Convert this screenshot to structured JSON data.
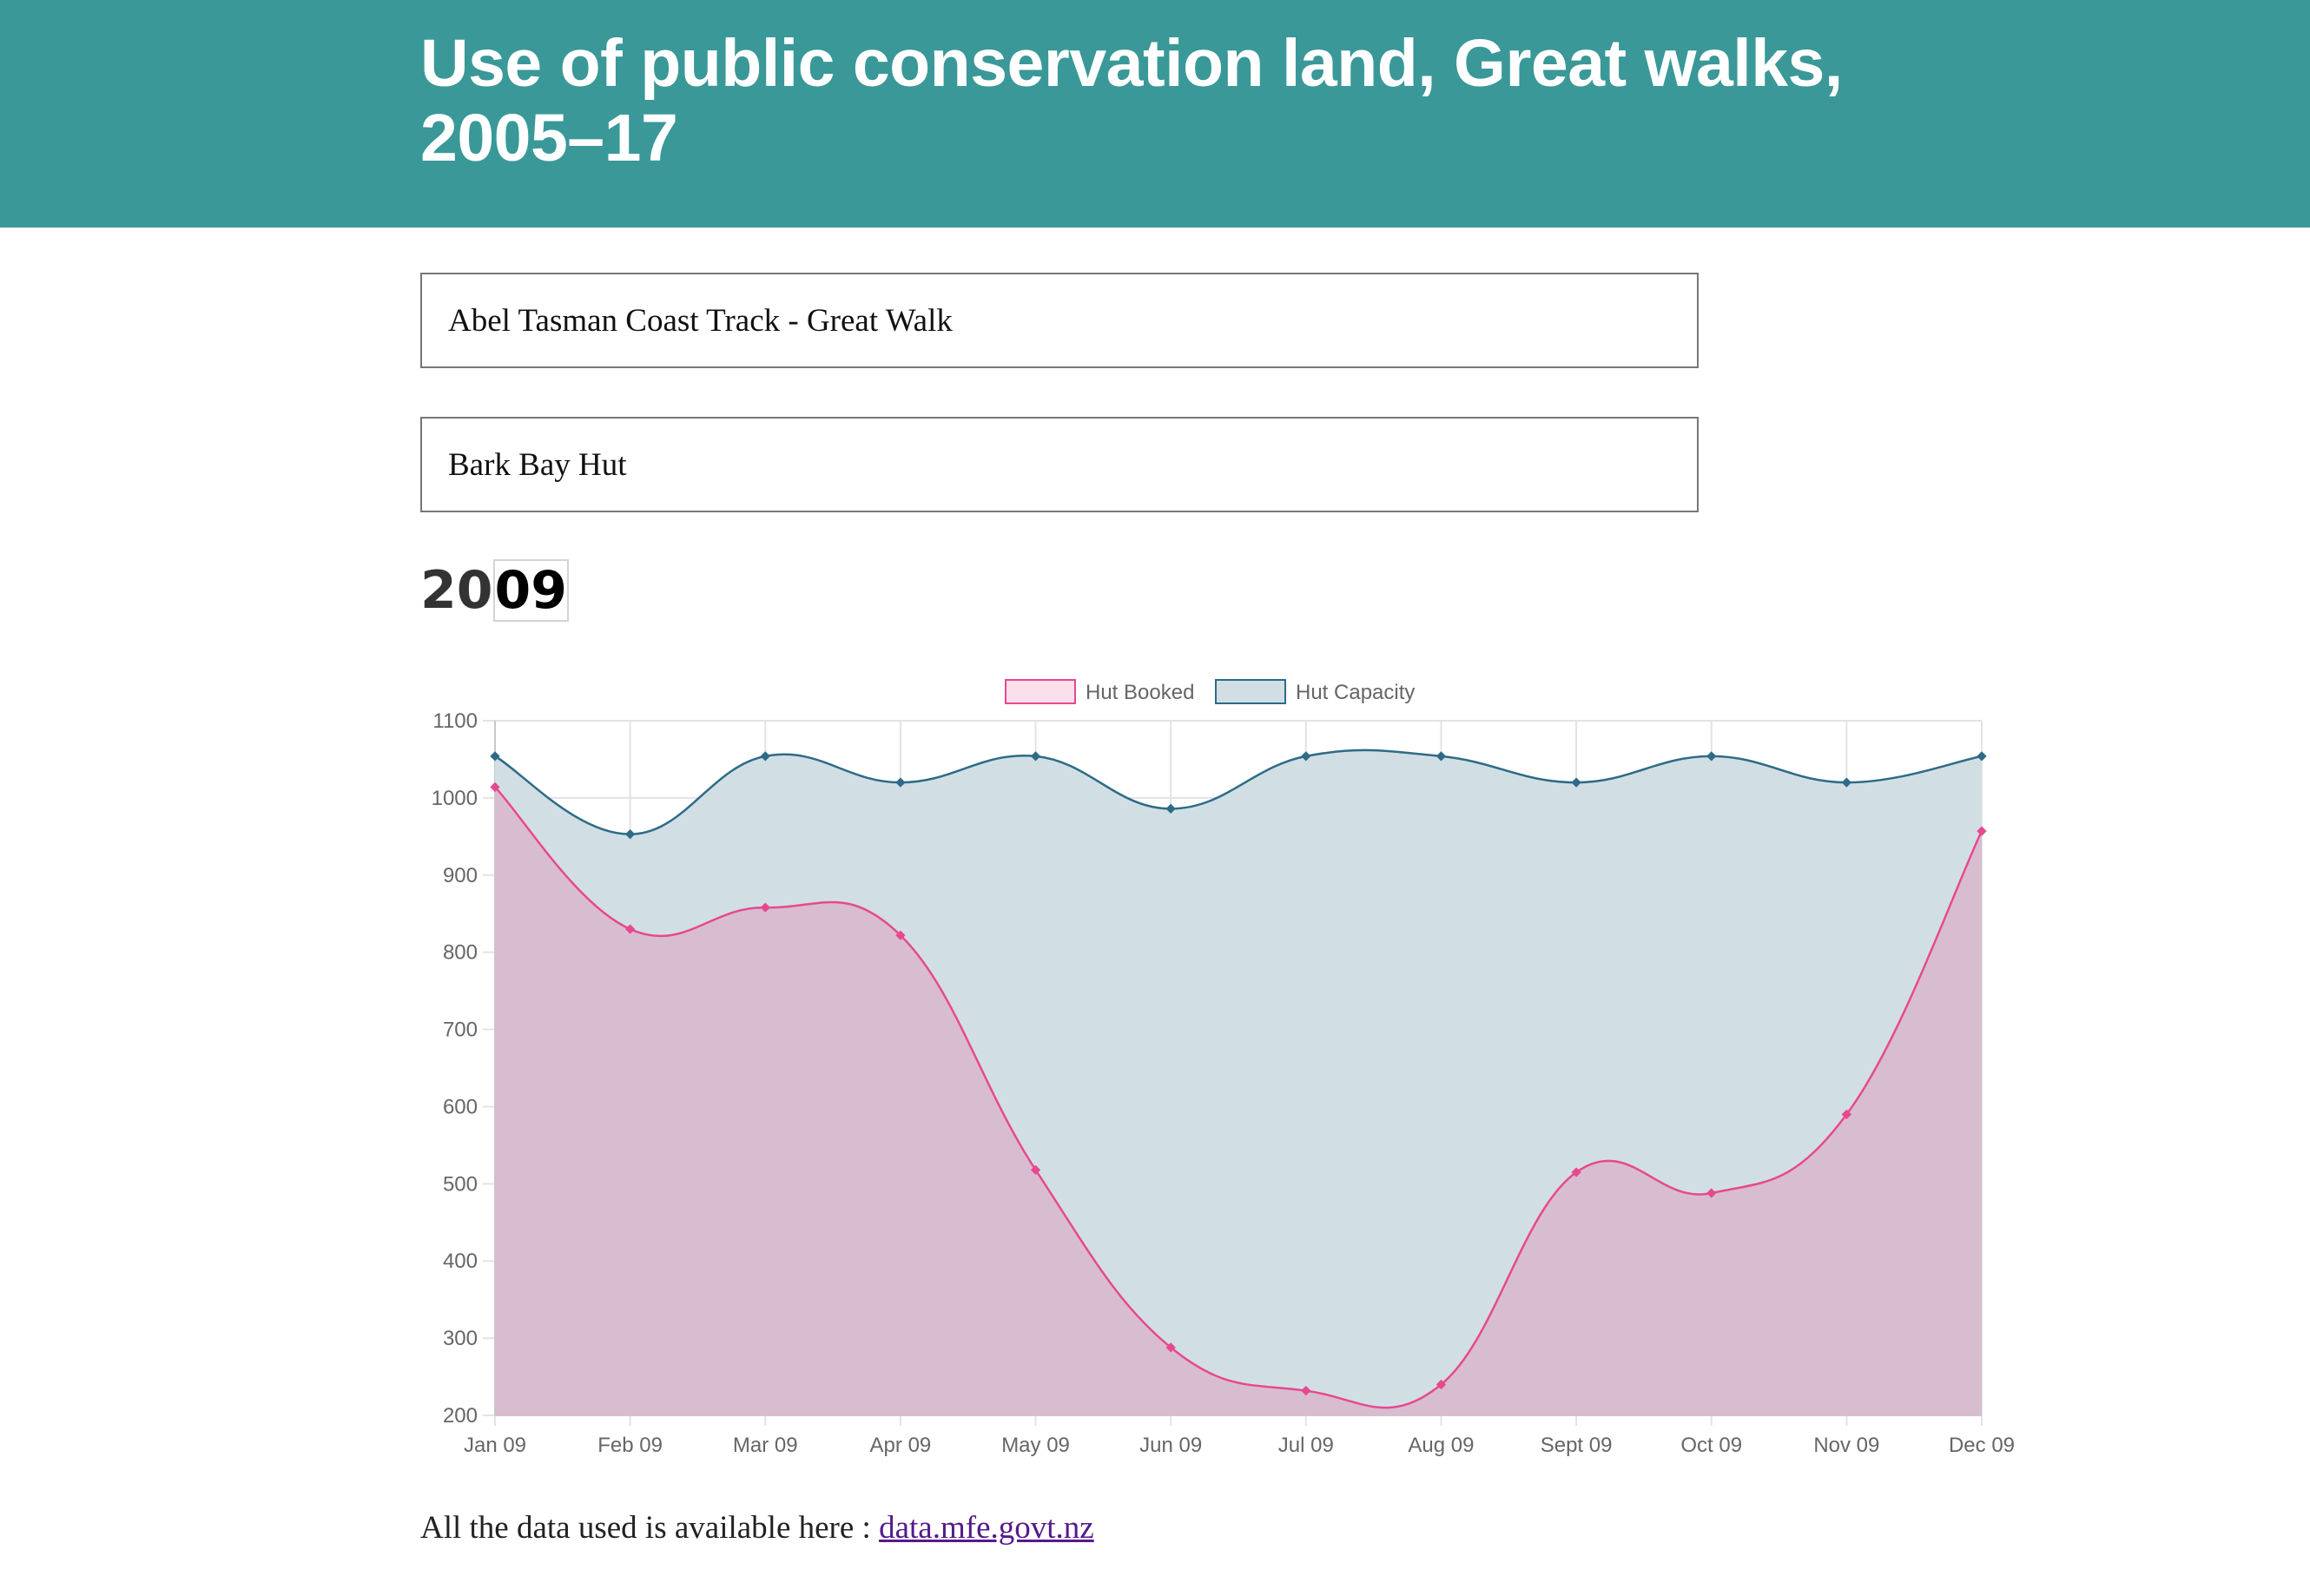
{
  "header": {
    "title": "Use of public conservation land, Great walks, 2005–17"
  },
  "filters": {
    "track": "Abel Tasman Coast Track - Great Walk",
    "hut": "Bark Bay Hut"
  },
  "year": {
    "prefix": "20",
    "editable": "09"
  },
  "chart_data": {
    "type": "area",
    "categories": [
      "Jan 09",
      "Feb 09",
      "Mar 09",
      "Apr 09",
      "May 09",
      "Jun 09",
      "Jul 09",
      "Aug 09",
      "Sept 09",
      "Oct 09",
      "Nov 09",
      "Dec 09"
    ],
    "series": [
      {
        "name": "Hut Booked",
        "values": [
          1014,
          830,
          858,
          822,
          518,
          288,
          232,
          240,
          515,
          488,
          590,
          957
        ],
        "line_color": "#e8488f",
        "fill_color": "#d8bdd1"
      },
      {
        "name": "Hut Capacity",
        "values": [
          1054,
          953,
          1054,
          1020,
          1054,
          986,
          1054,
          1054,
          1020,
          1054,
          1020,
          1054
        ],
        "line_color": "#2e6b87",
        "fill_color": "#d1dfe4"
      }
    ],
    "yticks": [
      "1100",
      "1000",
      "900",
      "800",
      "700",
      "600",
      "500",
      "400",
      "300",
      "200"
    ],
    "ylim": [
      200,
      1100
    ],
    "grid": true,
    "legend_position": "top-center"
  },
  "footer": {
    "text": "All the data used is available here : ",
    "link": "data.mfe.govt.nz"
  }
}
